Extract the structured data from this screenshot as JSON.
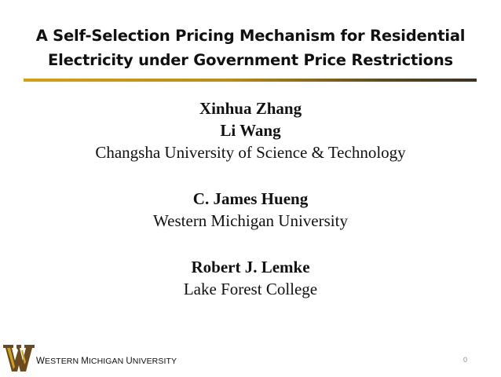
{
  "slide": {
    "title_line1": "A Self-Selection Pricing Mechanism for Residential",
    "title_line2": "Electricity under Government Price Restrictions",
    "authors": [
      {
        "name": "Xinhua Zhang"
      },
      {
        "name": "Li Wang",
        "affiliation": "Changsha University of Science & Technology"
      },
      {
        "name": "C. James Hueng",
        "affiliation": "Western Michigan University"
      },
      {
        "name": "Robert J. Lemke",
        "affiliation": "Lake Forest College"
      }
    ],
    "page_number": "0"
  },
  "footer": {
    "logo_icon": "wmu-w-logo-icon",
    "institution_first_letter_1": "W",
    "institution_rest_1": "ESTERN ",
    "institution_first_letter_2": "M",
    "institution_rest_2": "ICHIGAN ",
    "institution_first_letter_3": "U",
    "institution_rest_3": "NIVERSITY"
  },
  "colors": {
    "rule_gold": "#d4a017",
    "rule_dark": "#3a3224",
    "logo_brown": "#6b4a1f",
    "logo_gold": "#c9a227"
  }
}
